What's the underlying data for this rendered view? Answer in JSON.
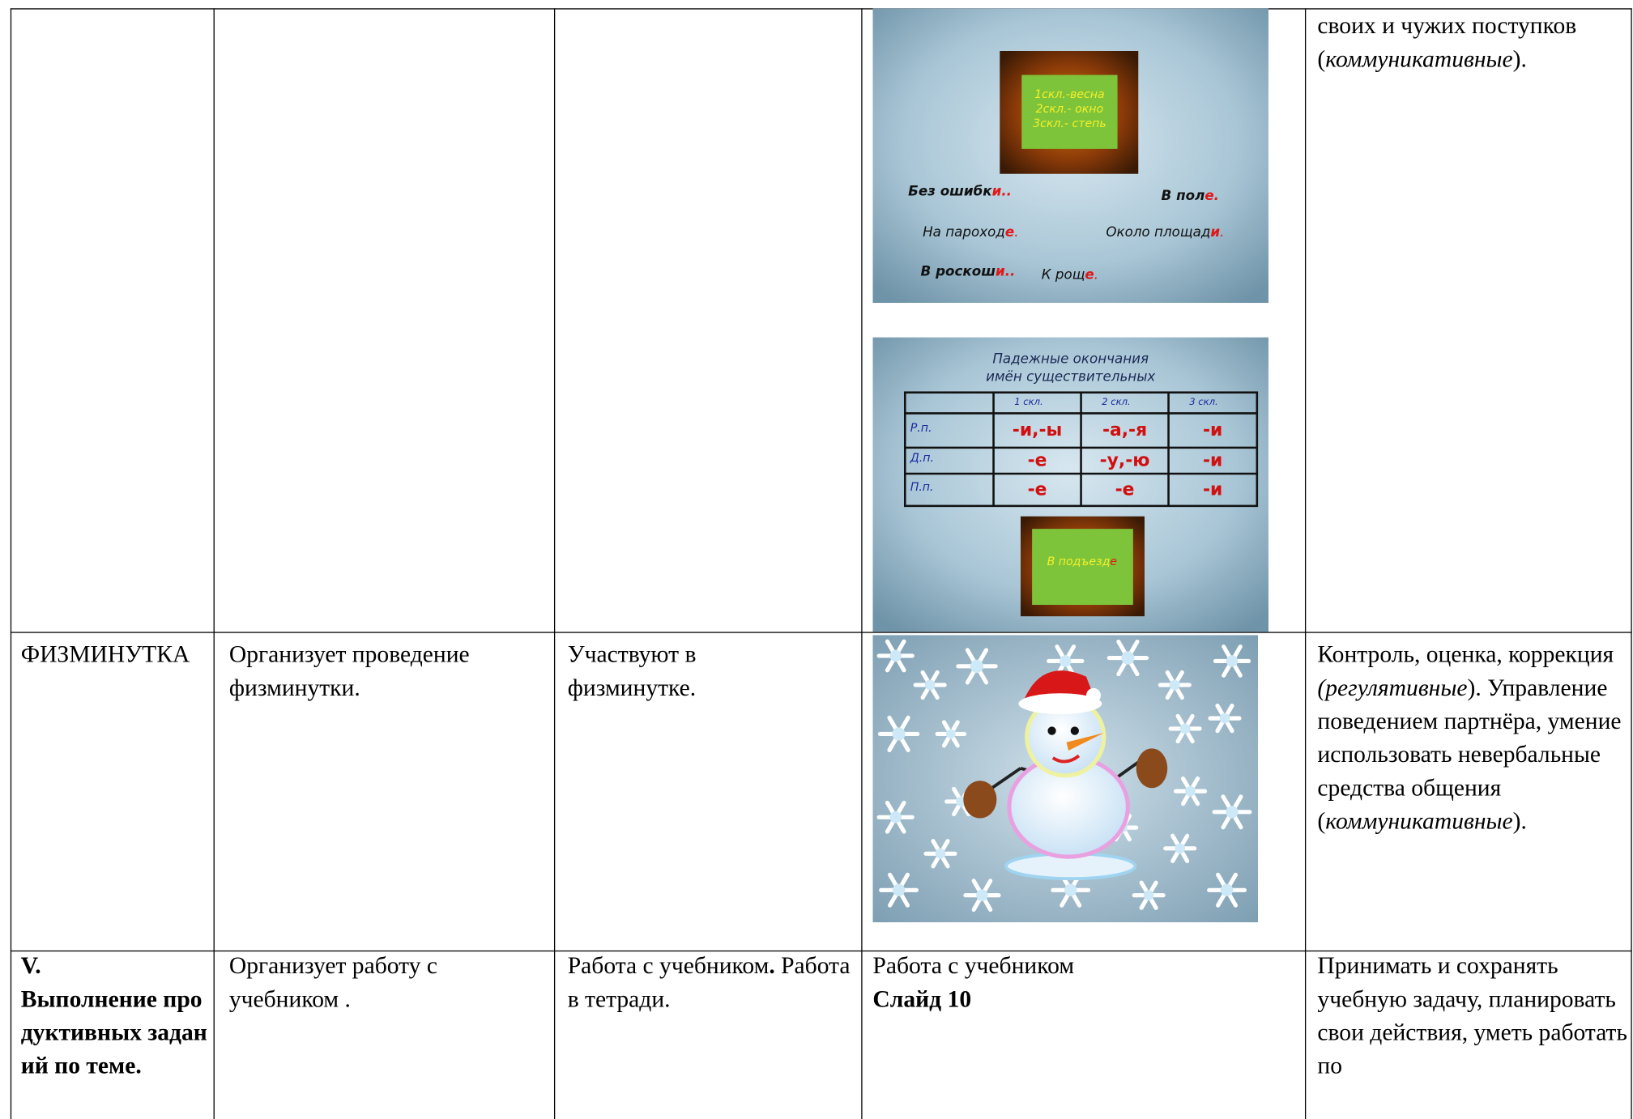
{
  "table": {
    "rows": [
      {
        "uud": [
          "своих и чужих поступков (",
          "коммуникативные",
          ")."
        ],
        "slides": [
          {
            "frame": [
              "1скл.-весна",
              "2скл.- окно",
              "3скл.- степь"
            ],
            "phrases": [
              {
                "stem": "Без ошибк",
                "ending": "и",
                "tail": ".."
              },
              {
                "stem": "В пол",
                "ending": "е",
                "tail": "."
              },
              {
                "stem": "На пароход",
                "ending": "е",
                "tail": "."
              },
              {
                "stem": "Около площад",
                "ending": "и",
                "tail": "."
              },
              {
                "stem": "В роскош",
                "ending": "и",
                "tail": ".."
              },
              {
                "stem": "К рощ",
                "ending": "е",
                "tail": "."
              }
            ]
          },
          {
            "title": [
              "Падежные окончания",
              "имён существительных"
            ],
            "header": [
              "1 скл.",
              "2 скл.",
              "3 скл."
            ],
            "rows": [
              [
                "Р.п.",
                "-и,-ы",
                "-а,-я",
                "-и"
              ],
              [
                "Д.п.",
                "-е",
                "-у,-ю",
                "-и"
              ],
              [
                "П.п.",
                "-е",
                "-е",
                "-и"
              ]
            ],
            "box": {
              "stem": "В подъезд",
              "ending": "е"
            }
          }
        ]
      },
      {
        "stage": "ФИЗМИНУТКА",
        "teacher": "Организует проведение физминутки.",
        "students": "Участвуют в физминутке.",
        "uud": [
          " Контроль, оценка, коррекция ",
          "(регулятивные",
          ").",
          "Управление поведением партнёра, умение использовать невербальные средства общения (",
          "коммуникативные",
          ")."
        ]
      },
      {
        "stage": [
          "V.",
          "Выполнение продуктивных заданий по теме."
        ],
        "teacher": "Организует работу с учебником .",
        "students": [
          "Работа с учебником",
          ".",
          "Работа в тетради."
        ],
        "slide": [
          "Работа с учебником",
          "Слайд 10"
        ],
        "uud": "Принимать и сохранять учебную задачу, планировать свои действия, уметь работать по"
      }
    ]
  }
}
